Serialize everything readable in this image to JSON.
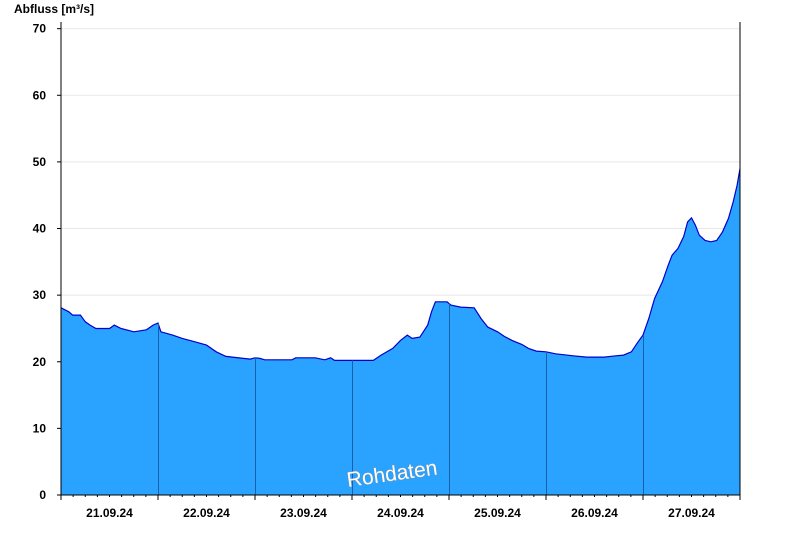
{
  "chart_data": {
    "type": "area",
    "title": "",
    "ylabel": "Abfluss [m³/s]",
    "xlabel": "",
    "ylim": [
      0,
      71
    ],
    "yticks": [
      0,
      10,
      20,
      30,
      40,
      50,
      60,
      70
    ],
    "x_day_labels": [
      "21.09.24",
      "22.09.24",
      "23.09.24",
      "24.09.24",
      "25.09.24",
      "26.09.24",
      "27.09.24"
    ],
    "x_range_days": [
      0,
      7
    ],
    "grid": true,
    "watermark": "Rohdaten",
    "colors": {
      "fill": "#29a3ff",
      "line": "#0000cc",
      "grid": "#e8e8e8",
      "divider": "#1a5fa8"
    },
    "series": [
      {
        "values": [
          [
            0.0,
            28.1
          ],
          [
            0.08,
            27.5
          ],
          [
            0.12,
            27.0
          ],
          [
            0.2,
            27.0
          ],
          [
            0.25,
            26.0
          ],
          [
            0.3,
            25.5
          ],
          [
            0.36,
            25.0
          ],
          [
            0.5,
            25.0
          ],
          [
            0.55,
            25.5
          ],
          [
            0.62,
            25.0
          ],
          [
            0.75,
            24.5
          ],
          [
            0.88,
            24.8
          ],
          [
            0.95,
            25.5
          ],
          [
            1.0,
            25.8
          ],
          [
            1.03,
            24.5
          ],
          [
            1.15,
            24.0
          ],
          [
            1.25,
            23.5
          ],
          [
            1.38,
            23.0
          ],
          [
            1.5,
            22.5
          ],
          [
            1.6,
            21.5
          ],
          [
            1.7,
            20.8
          ],
          [
            1.88,
            20.5
          ],
          [
            1.95,
            20.4
          ],
          [
            2.0,
            20.6
          ],
          [
            2.05,
            20.5
          ],
          [
            2.1,
            20.3
          ],
          [
            2.38,
            20.3
          ],
          [
            2.42,
            20.6
          ],
          [
            2.62,
            20.6
          ],
          [
            2.72,
            20.3
          ],
          [
            2.78,
            20.6
          ],
          [
            2.82,
            20.2
          ],
          [
            3.22,
            20.2
          ],
          [
            3.3,
            21.0
          ],
          [
            3.42,
            22.0
          ],
          [
            3.5,
            23.2
          ],
          [
            3.57,
            24.0
          ],
          [
            3.62,
            23.5
          ],
          [
            3.7,
            23.7
          ],
          [
            3.78,
            25.5
          ],
          [
            3.82,
            27.5
          ],
          [
            3.86,
            29.0
          ],
          [
            3.98,
            29.0
          ],
          [
            4.02,
            28.5
          ],
          [
            4.12,
            28.2
          ],
          [
            4.26,
            28.1
          ],
          [
            4.33,
            26.5
          ],
          [
            4.4,
            25.2
          ],
          [
            4.5,
            24.5
          ],
          [
            4.57,
            23.8
          ],
          [
            4.65,
            23.2
          ],
          [
            4.75,
            22.6
          ],
          [
            4.82,
            22.0
          ],
          [
            4.9,
            21.6
          ],
          [
            5.0,
            21.5
          ],
          [
            5.1,
            21.2
          ],
          [
            5.28,
            20.9
          ],
          [
            5.42,
            20.7
          ],
          [
            5.6,
            20.7
          ],
          [
            5.72,
            20.9
          ],
          [
            5.8,
            21.0
          ],
          [
            5.88,
            21.5
          ],
          [
            5.95,
            23.0
          ],
          [
            6.0,
            24.0
          ],
          [
            6.06,
            26.5
          ],
          [
            6.12,
            29.5
          ],
          [
            6.2,
            32.0
          ],
          [
            6.26,
            34.5
          ],
          [
            6.3,
            36.0
          ],
          [
            6.36,
            37.0
          ],
          [
            6.42,
            38.8
          ],
          [
            6.46,
            41.0
          ],
          [
            6.5,
            41.6
          ],
          [
            6.54,
            40.5
          ],
          [
            6.58,
            39.0
          ],
          [
            6.64,
            38.2
          ],
          [
            6.7,
            38.0
          ],
          [
            6.76,
            38.2
          ],
          [
            6.82,
            39.5
          ],
          [
            6.88,
            41.5
          ],
          [
            6.93,
            44.0
          ],
          [
            6.97,
            46.5
          ],
          [
            7.0,
            49.0
          ]
        ]
      }
    ]
  }
}
